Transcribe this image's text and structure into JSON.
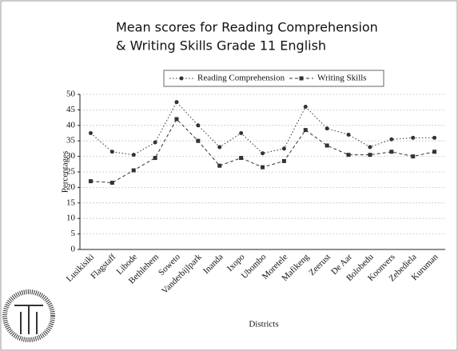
{
  "chart_data": {
    "type": "line",
    "title": [
      "Mean scores for Reading Comprehension",
      "& Writing Skills   Grade 11 English"
    ],
    "x_label": "Districts",
    "y_label": "Percentages",
    "categories": [
      "Lusikisiki",
      "Flagstaff",
      "Libode",
      "Bethlehem",
      "Soweto",
      "Vanderbijlpark",
      "Inanda",
      "Ixopo",
      "Ubombo",
      "Moretele",
      "Mafikeng",
      "Zeerust",
      "De Aar",
      "Bolobedu",
      "Koonvers",
      "Zebediela",
      "Kuruman"
    ],
    "series": [
      {
        "name": "Reading Comprehension",
        "color": "#333333",
        "marker": "circle",
        "dash": "dotted",
        "values": [
          37.5,
          31.5,
          30.5,
          34.5,
          47.5,
          40,
          33,
          37.5,
          31,
          32.5,
          46,
          39,
          37,
          33,
          35.5,
          36,
          36
        ]
      },
      {
        "name": "Writing Skills",
        "color": "#333333",
        "marker": "square",
        "dash": "dashed",
        "values": [
          22,
          21.5,
          25.5,
          29.5,
          42,
          35,
          27,
          29.5,
          26.5,
          28.5,
          38.5,
          33.5,
          30.5,
          30.5,
          31.5,
          30,
          31.5
        ]
      }
    ],
    "ylim": [
      0,
      50
    ],
    "yticks": [
      0,
      5,
      10,
      15,
      20,
      25,
      30,
      35,
      40,
      45,
      50
    ],
    "grid": true,
    "legend": "top"
  }
}
